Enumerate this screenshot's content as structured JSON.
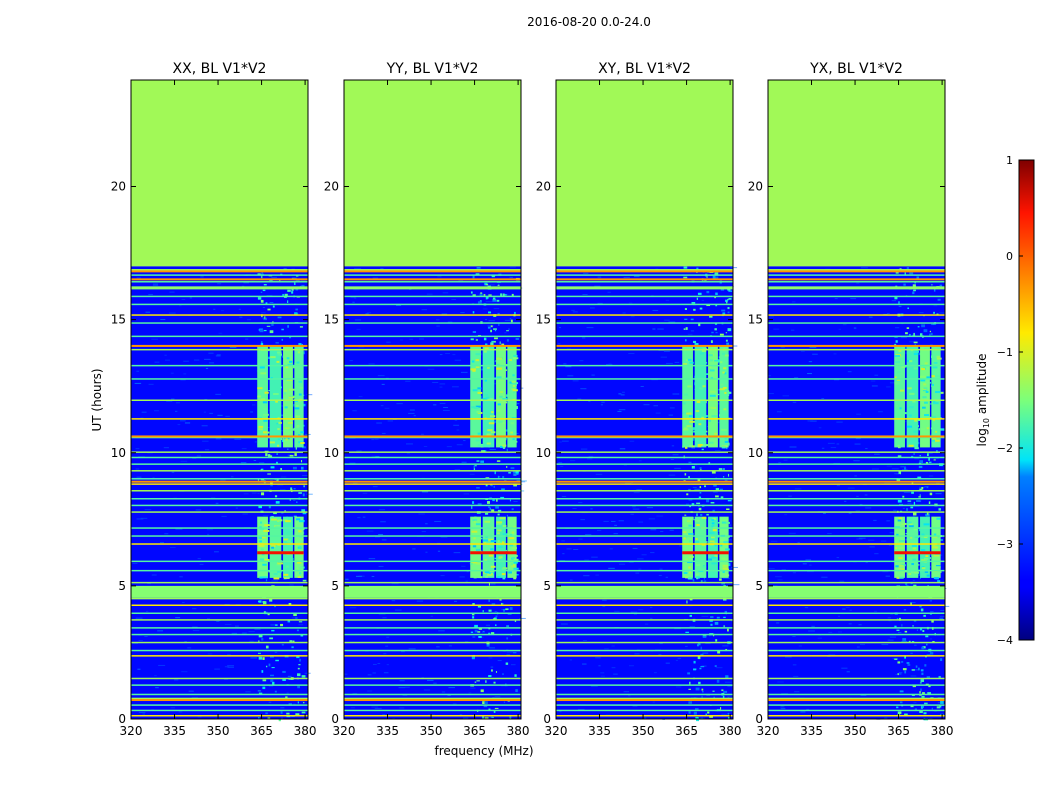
{
  "figure_title": "2016-08-20 0.0-24.0",
  "chart_data": {
    "type": "heatmap",
    "title": "2016-08-20 0.0-24.0",
    "xlabel": "frequency (MHz)",
    "ylabel": "UT (hours)",
    "xlim": [
      320,
      381
    ],
    "ylim": [
      0,
      24
    ],
    "xticks": [
      320,
      335,
      350,
      365,
      380
    ],
    "xtick_labels": [
      "320",
      "335",
      "350",
      "365",
      "380"
    ],
    "yticks": [
      0,
      5,
      10,
      15,
      20
    ],
    "ytick_labels": [
      "0",
      "5",
      "10",
      "15",
      "20"
    ],
    "panels": [
      {
        "title": "XX, BL V1*V2"
      },
      {
        "title": "YY, BL V1*V2"
      },
      {
        "title": "XY, BL V1*V2"
      },
      {
        "title": "YX, BL V1*V2"
      }
    ],
    "colorbar": {
      "label": "log10 amplitude",
      "label_main": "log",
      "label_sub": "10",
      "label_rest": " amplitude",
      "range": [
        -4,
        1
      ],
      "ticks": [
        1,
        0,
        -1,
        -2,
        -3,
        -4
      ],
      "tick_labels": [
        "1",
        "0",
        "−1",
        "−2",
        "−3",
        "−4"
      ]
    },
    "description_values": {
      "data_end_hour": 17.0,
      "blank_fill_log_amplitude": -1.3,
      "background_log_amplitude": -3.4,
      "active_band_mhz": [
        363.5,
        379.5
      ],
      "active_channel_blocks_mhz": [
        [
          363.5,
          367.2
        ],
        [
          367.8,
          371.8
        ],
        [
          372.4,
          375.8
        ],
        [
          376.3,
          379.5
        ]
      ],
      "bright_band_hours": [
        [
          5.3,
          7.6
        ],
        [
          10.2,
          14.0
        ]
      ],
      "strong_rfi_hour": 6.3,
      "strong_rfi_log_amplitude": 0.5
    }
  }
}
